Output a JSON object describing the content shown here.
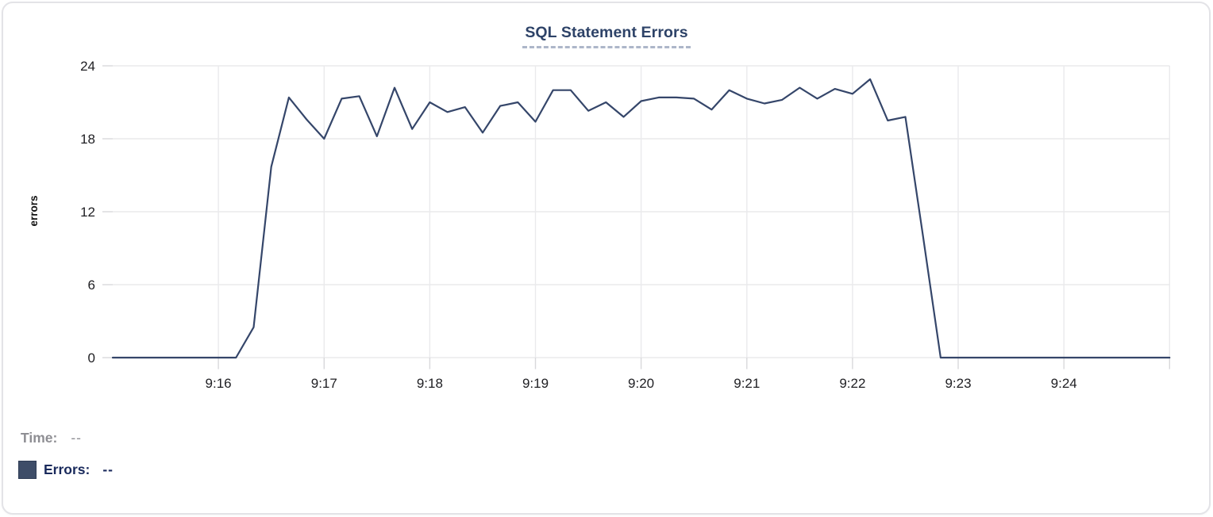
{
  "chart_data": {
    "type": "line",
    "title": "SQL Statement Errors",
    "xlabel": "",
    "ylabel": "errors",
    "ylim": [
      0,
      24
    ],
    "y_ticks": [
      0,
      6,
      12,
      18,
      24
    ],
    "x_tick_labels": [
      "9:16",
      "9:17",
      "9:18",
      "9:19",
      "9:20",
      "9:21",
      "9:22",
      "9:23",
      "9:24"
    ],
    "x_range": [
      "9:15:00",
      "9:25:00"
    ],
    "grid": true,
    "legend_position": "bottom-left",
    "series": [
      {
        "name": "Errors",
        "color": "#35466a",
        "x": [
          "9:15:00",
          "9:15:10",
          "9:15:20",
          "9:15:30",
          "9:15:40",
          "9:15:50",
          "9:16:00",
          "9:16:10",
          "9:16:20",
          "9:16:30",
          "9:16:40",
          "9:16:50",
          "9:17:00",
          "9:17:10",
          "9:17:20",
          "9:17:30",
          "9:17:40",
          "9:17:50",
          "9:18:00",
          "9:18:10",
          "9:18:20",
          "9:18:30",
          "9:18:40",
          "9:18:50",
          "9:19:00",
          "9:19:10",
          "9:19:20",
          "9:19:30",
          "9:19:40",
          "9:19:50",
          "9:20:00",
          "9:20:10",
          "9:20:20",
          "9:20:30",
          "9:20:40",
          "9:20:50",
          "9:21:00",
          "9:21:10",
          "9:21:20",
          "9:21:30",
          "9:21:40",
          "9:21:50",
          "9:22:00",
          "9:22:10",
          "9:22:20",
          "9:22:30",
          "9:22:40",
          "9:22:50",
          "9:23:00",
          "9:23:10",
          "9:23:20",
          "9:23:30",
          "9:23:40",
          "9:23:50",
          "9:24:00",
          "9:24:10",
          "9:24:20",
          "9:24:30",
          "9:24:40",
          "9:24:50",
          "9:25:00"
        ],
        "values": [
          0,
          0,
          0,
          0,
          0,
          0,
          0,
          0,
          2.5,
          15.7,
          21.4,
          19.6,
          18,
          21.3,
          21.5,
          18.2,
          22.2,
          18.8,
          21,
          20.2,
          20.6,
          18.5,
          20.7,
          21,
          19.4,
          22,
          22,
          20.3,
          21,
          19.8,
          21.1,
          21.4,
          21.4,
          21.3,
          20.4,
          22,
          21.3,
          20.9,
          21.2,
          22.2,
          21.3,
          22.1,
          21.7,
          22.9,
          19.5,
          19.8,
          10,
          0,
          0,
          0,
          0,
          0,
          0,
          0,
          0,
          0,
          0,
          0,
          0,
          0,
          0
        ]
      }
    ]
  },
  "readout": {
    "time_label": "Time:",
    "time_value": "--",
    "errors_label": "Errors:",
    "errors_value": "--"
  },
  "colors": {
    "line": "#35466a",
    "legend_swatch": "#3e4d68",
    "title_text": "#2e4368",
    "title_dash": "#adb6c9",
    "navy_text": "#1a2a5c",
    "gray_text": "#8e8e93",
    "gridline": "#eaeaec",
    "tick": "#d8d8db",
    "card_border": "#e3e3e7"
  }
}
